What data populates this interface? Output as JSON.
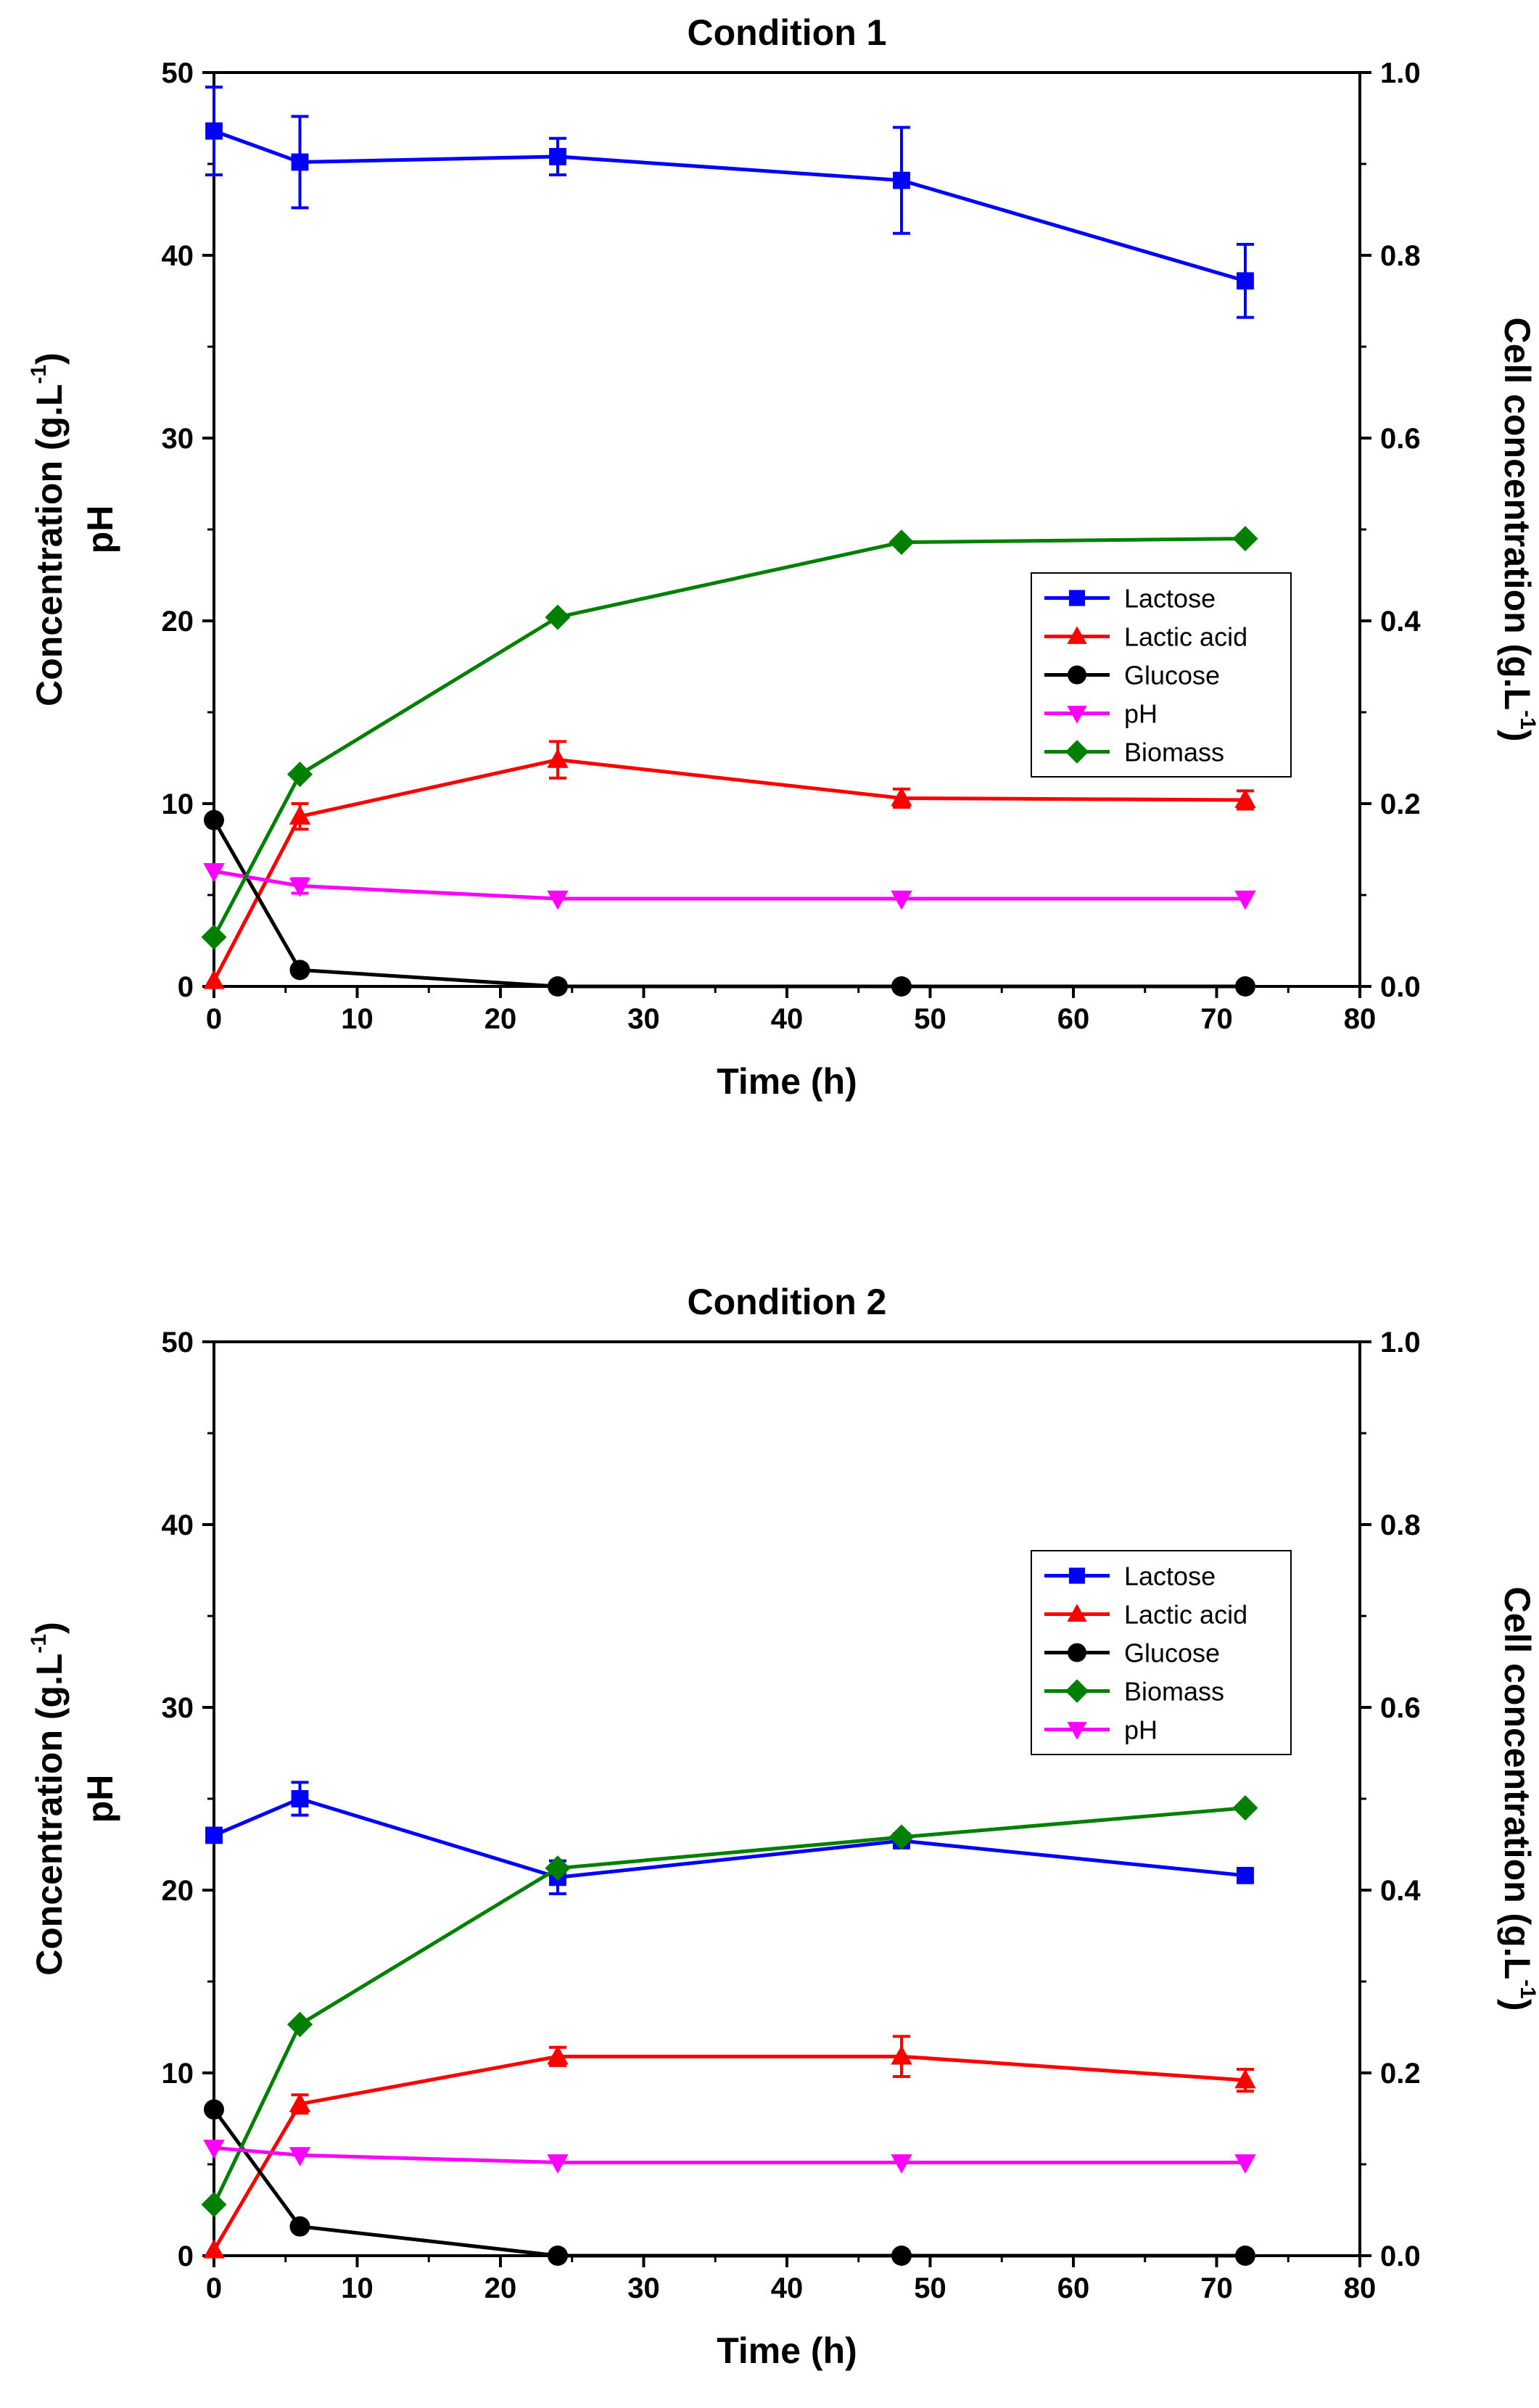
{
  "chart_data": [
    {
      "type": "line",
      "title": "Condition 1",
      "xlabel": "Time (h)",
      "ylabel_left": [
        "Concentration (g.L",
        "-1",
        ")",
        "pH"
      ],
      "ylabel_right": [
        "Cell concentration (g.L",
        "-1",
        ")"
      ],
      "xlim": [
        0,
        80
      ],
      "ylim_left": [
        0,
        50
      ],
      "ylim_right": [
        0,
        1.0
      ],
      "x_ticks": [
        0,
        10,
        20,
        30,
        40,
        50,
        60,
        70,
        80
      ],
      "y_ticks_left": [
        0,
        10,
        20,
        30,
        40,
        50
      ],
      "y_ticks_right": [
        "0.0",
        "0.2",
        "0.4",
        "0.6",
        "0.8",
        "1.0"
      ],
      "legend_position": "right-center",
      "legend_order": [
        "Lactose",
        "Lactic acid",
        "Glucose",
        "pH",
        "Biomass"
      ],
      "series": [
        {
          "name": "Lactose",
          "color": "#0000ff",
          "marker": "square",
          "axis": "left",
          "x": [
            0,
            6,
            24,
            48,
            72
          ],
          "y": [
            46.8,
            45.1,
            45.4,
            44.1,
            38.6
          ],
          "err": [
            2.4,
            2.5,
            1.0,
            2.9,
            2.0
          ]
        },
        {
          "name": "Lactic acid",
          "color": "#ff0000",
          "marker": "triangle-up",
          "axis": "left",
          "x": [
            0,
            6,
            24,
            48,
            72
          ],
          "y": [
            0.3,
            9.3,
            12.4,
            10.3,
            10.2
          ],
          "err": [
            0,
            0.7,
            1.0,
            0.5,
            0.5
          ]
        },
        {
          "name": "Glucose",
          "color": "#000000",
          "marker": "circle",
          "axis": "left",
          "x": [
            0,
            6,
            24,
            48,
            72
          ],
          "y": [
            9.1,
            0.9,
            0.0,
            0.0,
            0.0
          ],
          "err": [
            0,
            0,
            0,
            0,
            0
          ]
        },
        {
          "name": "pH",
          "color": "#ff00ff",
          "marker": "triangle-down",
          "axis": "left",
          "x": [
            0,
            6,
            24,
            48,
            72
          ],
          "y": [
            6.3,
            5.5,
            4.8,
            4.8,
            4.8
          ],
          "err": [
            0,
            0.4,
            0,
            0,
            0
          ]
        },
        {
          "name": "Biomass",
          "color": "#008000",
          "marker": "diamond",
          "axis": "right",
          "x": [
            0,
            6,
            24,
            48,
            72
          ],
          "y": [
            0.054,
            0.232,
            0.404,
            0.486,
            0.49
          ],
          "err": [
            0,
            0,
            0,
            0,
            0
          ]
        }
      ]
    },
    {
      "type": "line",
      "title": "Condition 2",
      "xlabel": "Time (h)",
      "ylabel_left": [
        "Concentration (g.L",
        "-1",
        ")",
        "pH"
      ],
      "ylabel_right": [
        "Cell concentration (g.L",
        "-1",
        ")"
      ],
      "xlim": [
        0,
        80
      ],
      "ylim_left": [
        0,
        50
      ],
      "ylim_right": [
        0,
        1.0
      ],
      "x_ticks": [
        0,
        10,
        20,
        30,
        40,
        50,
        60,
        70,
        80
      ],
      "y_ticks_left": [
        0,
        10,
        20,
        30,
        40,
        50
      ],
      "y_ticks_right": [
        "0.0",
        "0.2",
        "0.4",
        "0.6",
        "0.8",
        "1.0"
      ],
      "legend_position": "right-center",
      "legend_order": [
        "Lactose",
        "Lactic acid",
        "Glucose",
        "Biomass",
        "pH"
      ],
      "series": [
        {
          "name": "Lactose",
          "color": "#0000ff",
          "marker": "square",
          "axis": "left",
          "x": [
            0,
            6,
            24,
            48,
            72
          ],
          "y": [
            23.0,
            25.0,
            20.7,
            22.7,
            20.8
          ],
          "err": [
            0.3,
            0.9,
            0.9,
            0.3,
            0.3
          ]
        },
        {
          "name": "Lactic acid",
          "color": "#ff0000",
          "marker": "triangle-up",
          "axis": "left",
          "x": [
            0,
            6,
            24,
            48,
            72
          ],
          "y": [
            0.3,
            8.3,
            10.9,
            10.9,
            9.6
          ],
          "err": [
            0,
            0.5,
            0.5,
            1.1,
            0.6
          ]
        },
        {
          "name": "Glucose",
          "color": "#000000",
          "marker": "circle",
          "axis": "left",
          "x": [
            0,
            6,
            24,
            48,
            72
          ],
          "y": [
            8.0,
            1.6,
            0.0,
            0.0,
            0.0
          ],
          "err": [
            0,
            0,
            0,
            0,
            0
          ]
        },
        {
          "name": "Biomass",
          "color": "#008000",
          "marker": "diamond",
          "axis": "right",
          "x": [
            0,
            6,
            24,
            48,
            72
          ],
          "y": [
            0.056,
            0.253,
            0.424,
            0.458,
            0.49
          ],
          "err": [
            0,
            0,
            0,
            0,
            0
          ]
        },
        {
          "name": "pH",
          "color": "#ff00ff",
          "marker": "triangle-down",
          "axis": "left",
          "x": [
            0,
            6,
            24,
            48,
            72
          ],
          "y": [
            5.9,
            5.5,
            5.1,
            5.1,
            5.1
          ],
          "err": [
            0,
            0,
            0,
            0,
            0
          ]
        }
      ]
    }
  ]
}
